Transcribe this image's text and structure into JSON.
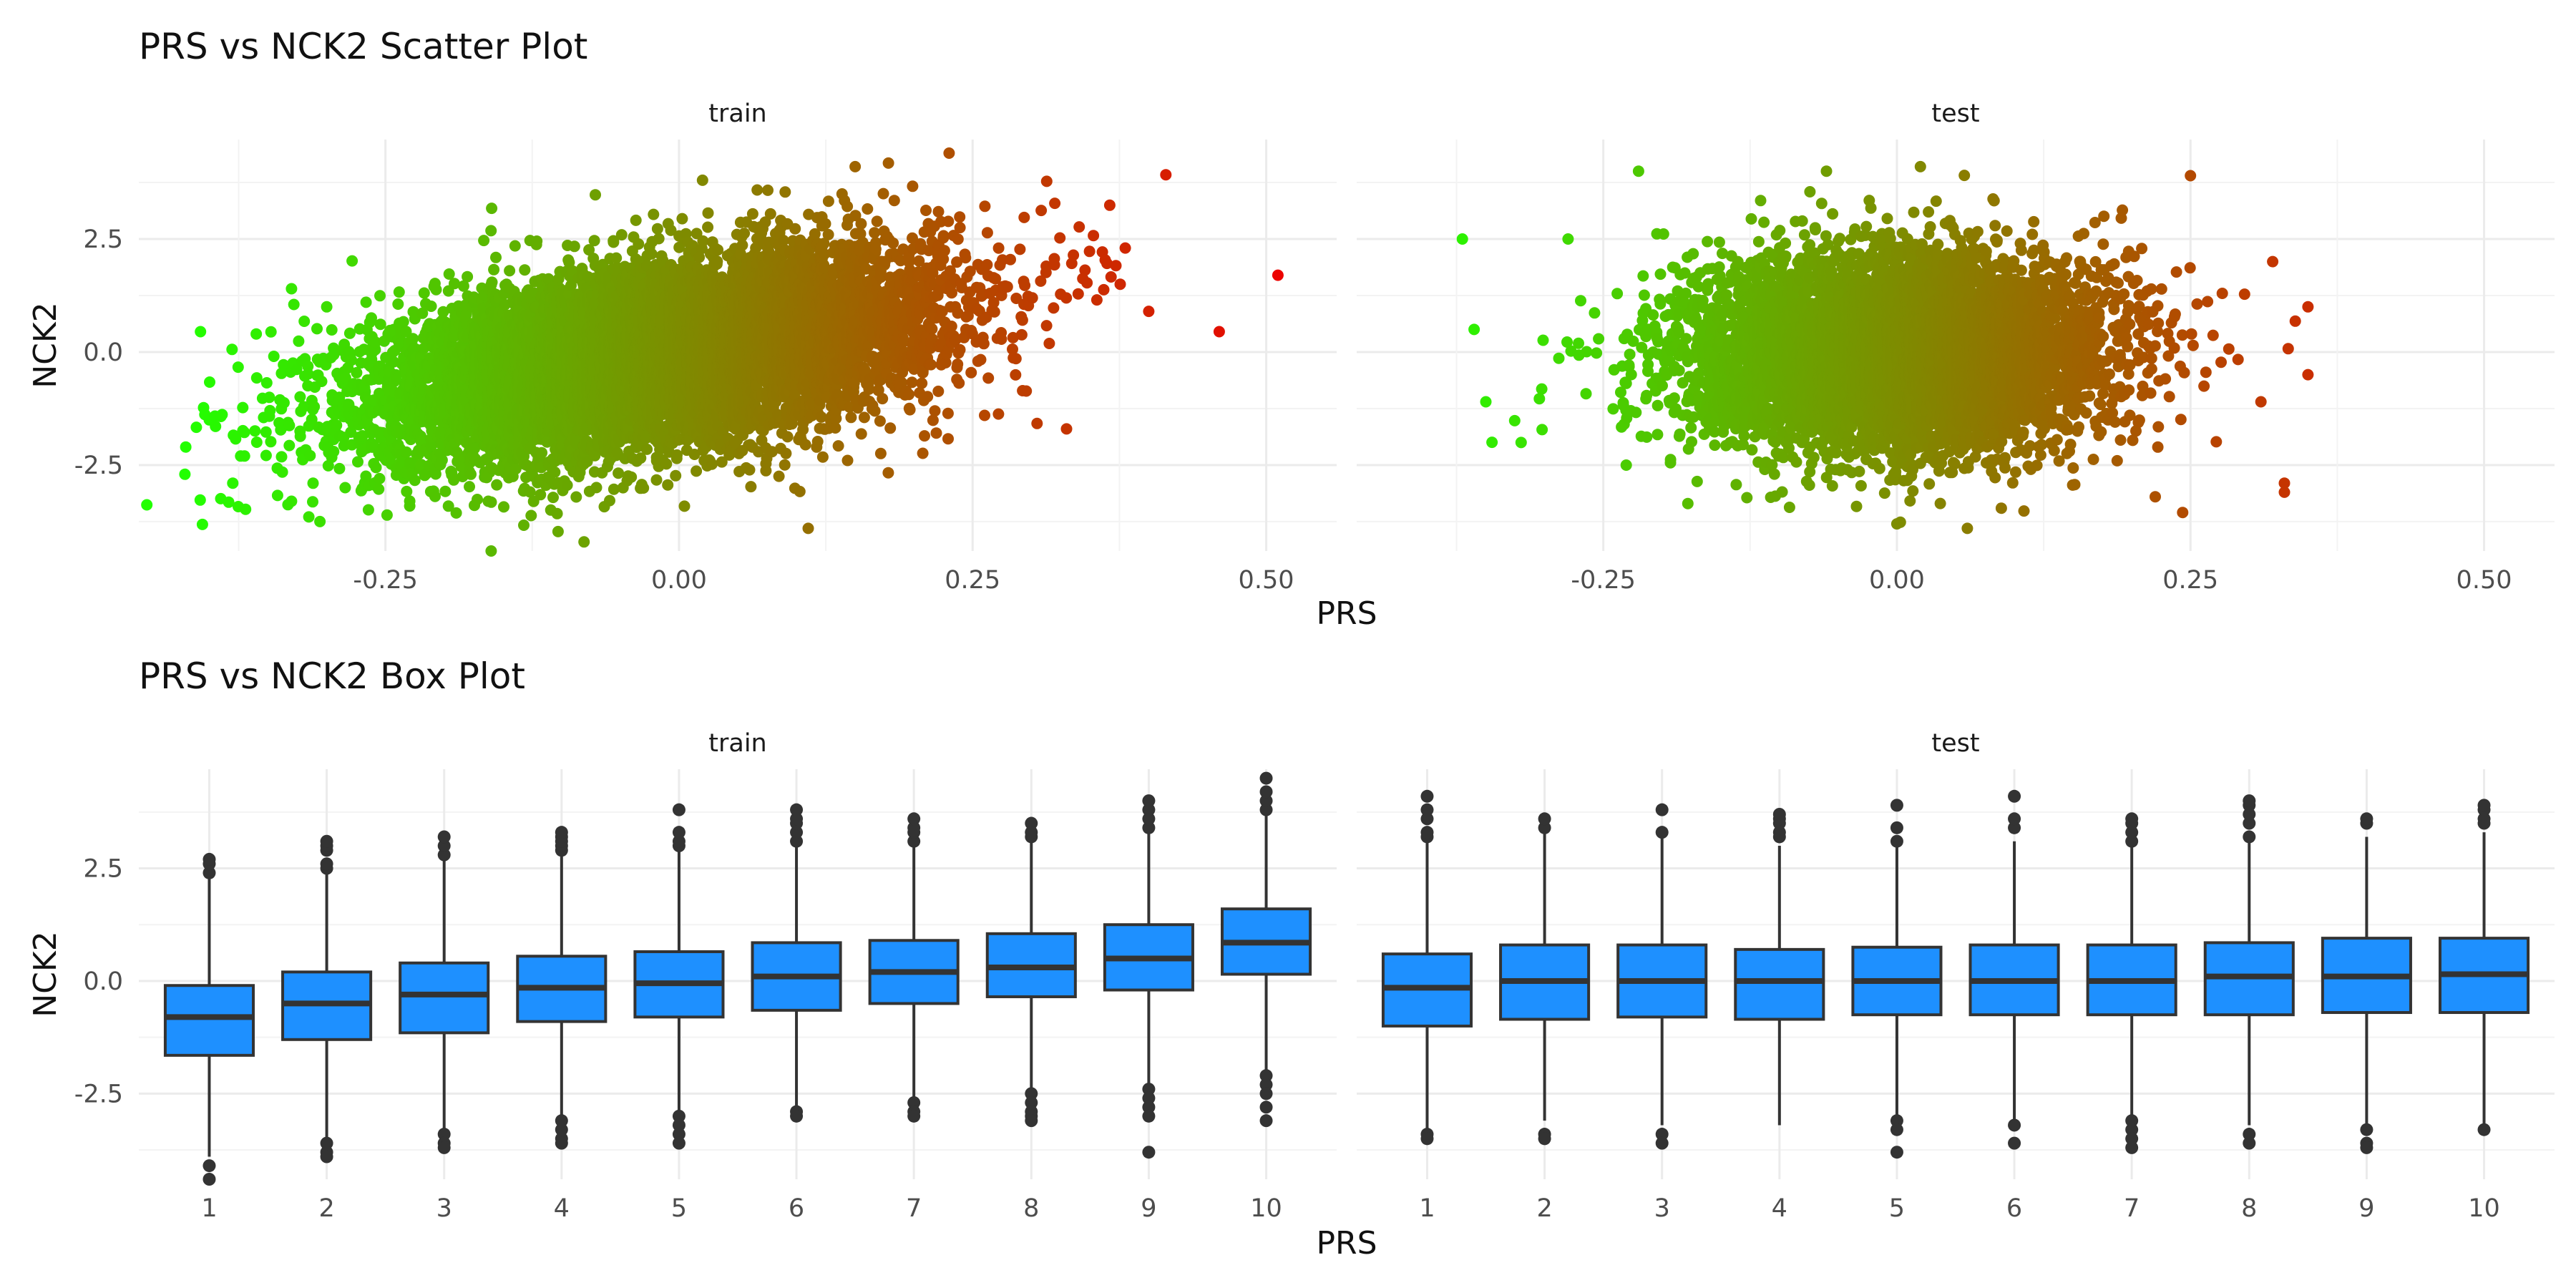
{
  "figure": {
    "scatter_title": "PRS vs NCK2 Scatter Plot",
    "box_title": "PRS vs NCK2 Box Plot"
  },
  "chart_data": [
    {
      "type": "scatter",
      "title": "PRS vs NCK2 Scatter Plot",
      "xlabel": "PRS",
      "ylabel": "NCK2",
      "facets": [
        "train",
        "test"
      ],
      "xlim": [
        -0.46,
        0.56
      ],
      "ylim": [
        -4.4,
        4.7
      ],
      "x_ticks": [
        -0.25,
        0.0,
        0.25,
        0.5
      ],
      "x_tick_labels": [
        "-0.25",
        "0.00",
        "0.25",
        "0.50"
      ],
      "y_ticks": [
        -2.5,
        0.0,
        2.5
      ],
      "y_tick_labels": [
        "-2.5",
        "0.0",
        "2.5"
      ],
      "color_scale": {
        "low": "#22ff00",
        "high": "#ee0000",
        "variable": "PRS",
        "range": [
          -0.42,
          0.52
        ]
      },
      "grid": true,
      "legend": "none",
      "series": [
        {
          "facet": "train",
          "n": 9000,
          "cloud": {
            "x_mean": -0.02,
            "x_sd": 0.12,
            "slope": 4.2,
            "intercept": 0.0,
            "resid_sd": 1.0
          },
          "points": [
            [
              -0.42,
              -2.1
            ],
            [
              -0.4,
              -1.5
            ],
            [
              -0.38,
              -2.9
            ],
            [
              -0.37,
              -2.3
            ],
            [
              -0.36,
              0.4
            ],
            [
              -0.33,
              1.4
            ],
            [
              -0.33,
              -3.3
            ],
            [
              0.46,
              0.45
            ],
            [
              0.51,
              1.7
            ],
            [
              0.4,
              0.9
            ],
            [
              0.23,
              4.4
            ],
            [
              0.15,
              4.1
            ],
            [
              0.02,
              3.8
            ],
            [
              -0.16,
              -4.4
            ],
            [
              0.11,
              -3.9
            ],
            [
              -0.3,
              1.0
            ],
            [
              0.33,
              -1.7
            ],
            [
              0.38,
              2.3
            ]
          ]
        },
        {
          "facet": "test",
          "n": 6000,
          "cloud": {
            "x_mean": 0.0,
            "x_sd": 0.09,
            "slope": 0.5,
            "intercept": 0.0,
            "resid_sd": 1.1
          },
          "points": [
            [
              -0.37,
              2.5
            ],
            [
              -0.36,
              0.5
            ],
            [
              -0.35,
              -1.1
            ],
            [
              -0.28,
              2.5
            ],
            [
              -0.32,
              -2.0
            ],
            [
              -0.22,
              4.0
            ],
            [
              0.35,
              1.0
            ],
            [
              0.35,
              -0.5
            ],
            [
              0.33,
              -2.9
            ],
            [
              0.33,
              -3.1
            ],
            [
              0.31,
              -1.1
            ],
            [
              0.25,
              3.9
            ],
            [
              0.22,
              -3.2
            ],
            [
              0.02,
              4.1
            ],
            [
              0.0,
              -3.8
            ],
            [
              -0.06,
              4.0
            ],
            [
              0.06,
              -3.9
            ],
            [
              0.32,
              2.0
            ]
          ]
        }
      ]
    },
    {
      "type": "box",
      "title": "PRS vs NCK2 Box Plot",
      "xlabel": "PRS",
      "ylabel": "NCK2",
      "facets": [
        "train",
        "test"
      ],
      "categories": [
        "1",
        "2",
        "3",
        "4",
        "5",
        "6",
        "7",
        "8",
        "9",
        "10"
      ],
      "ylim": [
        -4.4,
        4.7
      ],
      "y_ticks": [
        -2.5,
        0.0,
        2.5
      ],
      "y_tick_labels": [
        "-2.5",
        "0.0",
        "2.5"
      ],
      "box_fill": "#1e90ff",
      "box_line": "#333333",
      "grid": true,
      "legend": "none",
      "series": [
        {
          "facet": "train",
          "boxes": [
            {
              "q1": -1.65,
              "median": -0.8,
              "q3": -0.1,
              "low": -3.9,
              "high": 2.3,
              "outliers": [
                -4.1,
                -4.4,
                2.4,
                2.6,
                2.7
              ]
            },
            {
              "q1": -1.3,
              "median": -0.5,
              "q3": 0.2,
              "low": -3.5,
              "high": 2.5,
              "outliers": [
                -3.6,
                -3.8,
                -3.9,
                2.5,
                2.6,
                2.9,
                3.0,
                3.1
              ]
            },
            {
              "q1": -1.15,
              "median": -0.3,
              "q3": 0.4,
              "low": -3.3,
              "high": 2.7,
              "outliers": [
                -3.4,
                -3.6,
                -3.7,
                2.8,
                3.0,
                3.2
              ]
            },
            {
              "q1": -0.9,
              "median": -0.15,
              "q3": 0.55,
              "low": -3.0,
              "high": 2.8,
              "outliers": [
                -3.1,
                -3.3,
                -3.5,
                -3.6,
                2.9,
                3.0,
                3.1,
                3.2,
                3.3
              ]
            },
            {
              "q1": -0.8,
              "median": -0.05,
              "q3": 0.65,
              "low": -2.9,
              "high": 2.9,
              "outliers": [
                -3.0,
                -3.2,
                -3.4,
                -3.6,
                3.0,
                3.1,
                3.3,
                3.8
              ]
            },
            {
              "q1": -0.65,
              "median": 0.1,
              "q3": 0.85,
              "low": -2.8,
              "high": 3.0,
              "outliers": [
                -2.9,
                -3.0,
                3.1,
                3.3,
                3.5,
                3.6,
                3.8
              ]
            },
            {
              "q1": -0.5,
              "median": 0.2,
              "q3": 0.9,
              "low": -2.6,
              "high": 3.0,
              "outliers": [
                -2.7,
                -2.9,
                -3.0,
                3.1,
                3.3,
                3.4,
                3.6
              ]
            },
            {
              "q1": -0.35,
              "median": 0.3,
              "q3": 1.05,
              "low": -2.4,
              "high": 3.1,
              "outliers": [
                -2.5,
                -2.7,
                -2.9,
                -3.0,
                -3.1,
                3.2,
                3.3,
                3.5
              ]
            },
            {
              "q1": -0.2,
              "median": 0.5,
              "q3": 1.25,
              "low": -2.3,
              "high": 3.3,
              "outliers": [
                -2.4,
                -2.6,
                -2.8,
                -3.0,
                -3.8,
                3.4,
                3.6,
                3.8,
                4.0
              ]
            },
            {
              "q1": 0.15,
              "median": 0.85,
              "q3": 1.6,
              "low": -2.0,
              "high": 3.7,
              "outliers": [
                -2.1,
                -2.3,
                -2.5,
                -2.8,
                -3.1,
                3.8,
                4.0,
                4.2,
                4.5
              ]
            }
          ]
        },
        {
          "facet": "test",
          "boxes": [
            {
              "q1": -1.0,
              "median": -0.15,
              "q3": 0.6,
              "low": -3.3,
              "high": 3.1,
              "outliers": [
                -3.4,
                -3.5,
                3.2,
                3.3,
                3.6,
                3.8,
                4.1
              ]
            },
            {
              "q1": -0.85,
              "median": 0.0,
              "q3": 0.8,
              "low": -3.1,
              "high": 3.3,
              "outliers": [
                -3.4,
                -3.5,
                3.4,
                3.6
              ]
            },
            {
              "q1": -0.8,
              "median": 0.0,
              "q3": 0.8,
              "low": -3.2,
              "high": 3.2,
              "outliers": [
                -3.4,
                -3.6,
                3.3,
                3.8
              ]
            },
            {
              "q1": -0.85,
              "median": 0.0,
              "q3": 0.7,
              "low": -3.2,
              "high": 3.0,
              "outliers": [
                3.2,
                3.3,
                3.5,
                3.6,
                3.7
              ]
            },
            {
              "q1": -0.75,
              "median": 0.0,
              "q3": 0.75,
              "low": -3.0,
              "high": 3.0,
              "outliers": [
                -3.1,
                -3.3,
                -3.8,
                3.1,
                3.4,
                3.9
              ]
            },
            {
              "q1": -0.75,
              "median": 0.0,
              "q3": 0.8,
              "low": -3.1,
              "high": 3.1,
              "outliers": [
                -3.2,
                -3.6,
                3.4,
                3.6,
                4.1
              ]
            },
            {
              "q1": -0.75,
              "median": 0.0,
              "q3": 0.8,
              "low": -3.0,
              "high": 3.0,
              "outliers": [
                -3.1,
                -3.3,
                -3.5,
                -3.7,
                3.1,
                3.3,
                3.5,
                3.6
              ]
            },
            {
              "q1": -0.75,
              "median": 0.1,
              "q3": 0.85,
              "low": -3.2,
              "high": 3.1,
              "outliers": [
                -3.4,
                -3.6,
                3.2,
                3.5,
                3.7,
                3.9,
                4.0
              ]
            },
            {
              "q1": -0.7,
              "median": 0.1,
              "q3": 0.95,
              "low": -3.2,
              "high": 3.2,
              "outliers": [
                -3.3,
                -3.6,
                -3.7,
                3.5,
                3.6
              ]
            },
            {
              "q1": -0.7,
              "median": 0.15,
              "q3": 0.95,
              "low": -3.2,
              "high": 3.3,
              "outliers": [
                -3.3,
                3.5,
                3.6,
                3.8,
                3.9
              ]
            }
          ]
        }
      ]
    }
  ]
}
